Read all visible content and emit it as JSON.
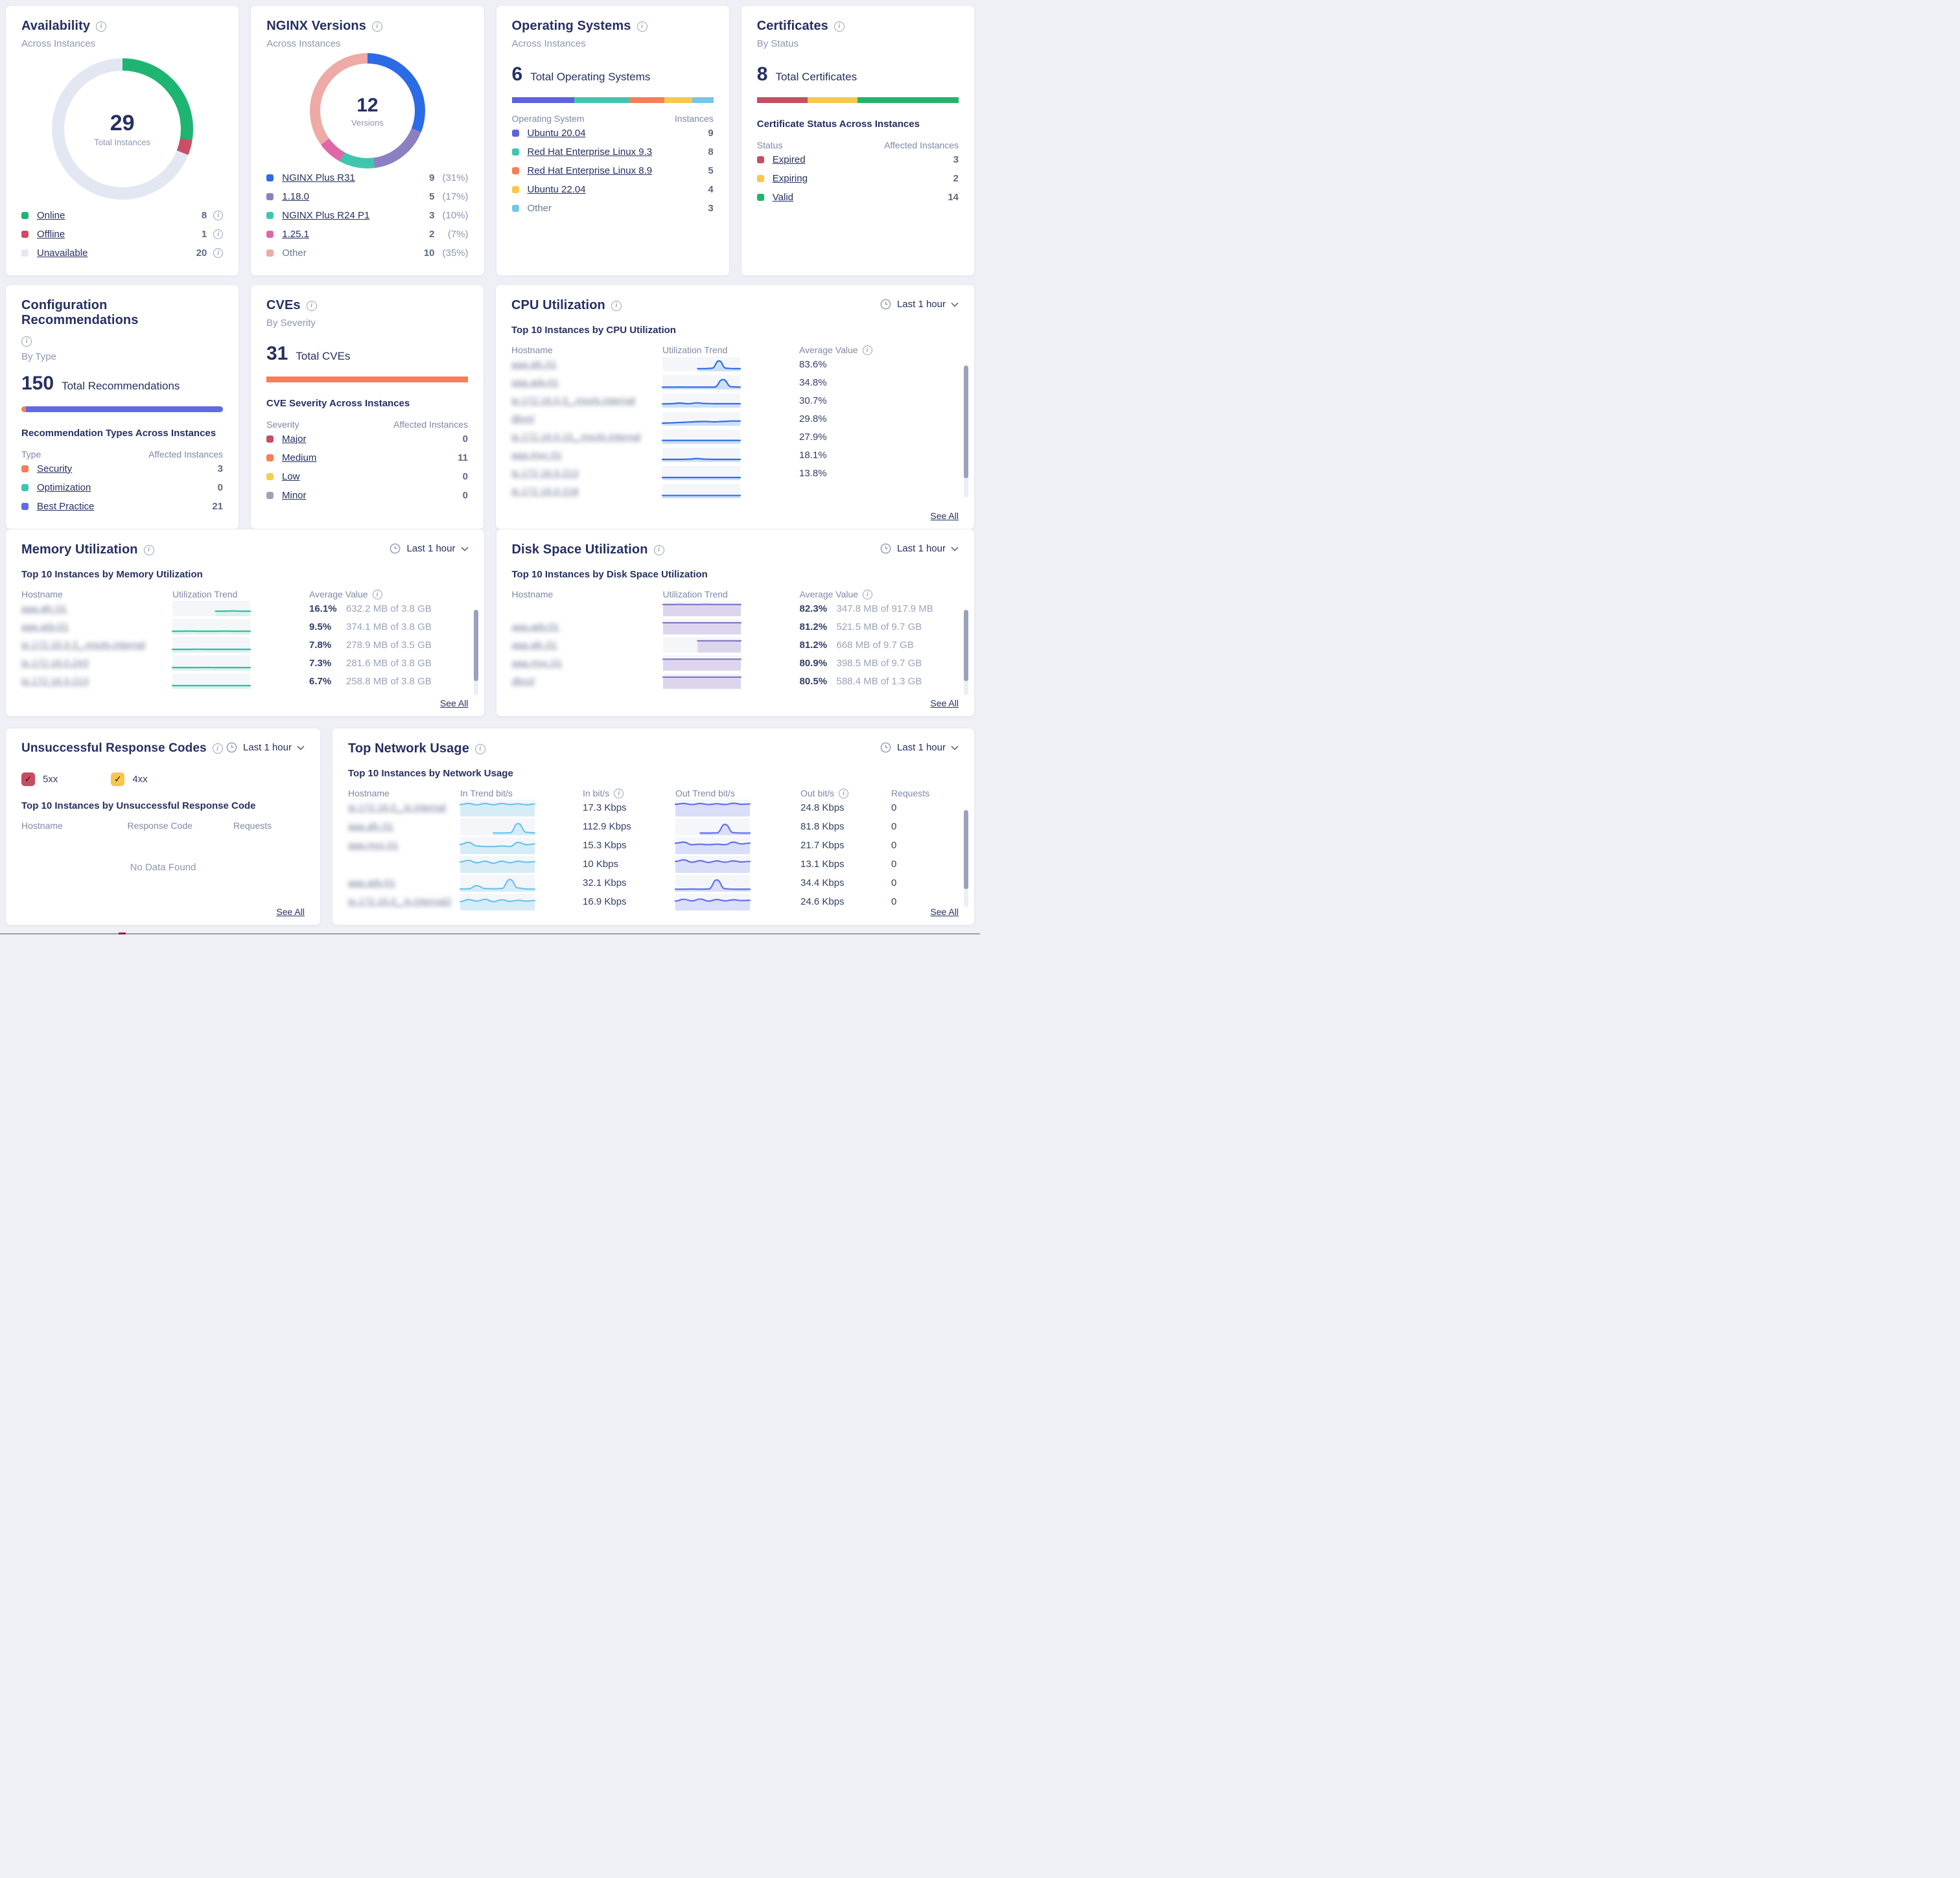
{
  "page": {
    "time_range_label": "Last 1 hour",
    "see_all_label": "See All"
  },
  "availability": {
    "title": "Availability",
    "subtitle": "Across Instances",
    "donut": {
      "center_value": "29",
      "center_label": "Total Instances",
      "segments": [
        {
          "label": "Online",
          "color": "#1db571",
          "pct": 27.6
        },
        {
          "label": "Offline",
          "color": "#cb4e64",
          "pct": 3.4
        },
        {
          "label": "Unavailable",
          "color": "#e3e7f2",
          "pct": 69.0
        }
      ]
    },
    "legend": [
      {
        "label": "Online",
        "color": "#1db571",
        "value": "8"
      },
      {
        "label": "Offline",
        "color": "#cb4e64",
        "value": "1"
      },
      {
        "label": "Unavailable",
        "color": "#e3e7f2",
        "value": "20"
      }
    ]
  },
  "nginx_versions": {
    "title": "NGINX Versions",
    "subtitle": "Across Instances",
    "donut": {
      "center_value": "12",
      "center_label": "Versions",
      "segments": [
        {
          "label": "NGINX Plus R31",
          "color": "#2c6be6",
          "pct": 31
        },
        {
          "label": "1.18.0",
          "color": "#8d80c2",
          "pct": 17
        },
        {
          "label": "NGINX Plus R24 P1",
          "color": "#3fc6ae",
          "pct": 10
        },
        {
          "label": "1.25.1",
          "color": "#de67a7",
          "pct": 7
        },
        {
          "label": "Other",
          "color": "#eeaaa4",
          "pct": 35
        }
      ]
    },
    "legend": [
      {
        "label": "NGINX Plus R31",
        "color": "#2c6be6",
        "count": "9",
        "pct": "(31%)"
      },
      {
        "label": "1.18.0",
        "color": "#8d80c2",
        "count": "5",
        "pct": "(17%)"
      },
      {
        "label": "NGINX Plus R24 P1",
        "color": "#3fc6ae",
        "count": "3",
        "pct": "(10%)"
      },
      {
        "label": "1.25.1",
        "color": "#de67a7",
        "count": "2",
        "pct": "(7%)"
      },
      {
        "label": "Other",
        "color": "#eeaaa4",
        "count": "10",
        "pct": "(35%)"
      }
    ]
  },
  "operating_systems": {
    "title": "Operating Systems",
    "subtitle": "Across Instances",
    "total_value": "6",
    "total_label": "Total Operating Systems",
    "bar": [
      {
        "color": "#5c62e0",
        "pct": 31
      },
      {
        "color": "#3fc6ae",
        "pct": 27.6
      },
      {
        "color": "#f87e55",
        "pct": 17.2
      },
      {
        "color": "#f8c84b",
        "pct": 13.8
      },
      {
        "color": "#74c7e6",
        "pct": 10.4
      }
    ],
    "col_left": "Operating System",
    "col_right": "Instances",
    "rows": [
      {
        "label": "Ubuntu 20.04",
        "color": "#5c62e0",
        "value": "9",
        "link": true
      },
      {
        "label": "Red Hat Enterprise Linux 9.3",
        "color": "#3fc6ae",
        "value": "8",
        "link": true
      },
      {
        "label": "Red Hat Enterprise Linux 8.9",
        "color": "#f87e55",
        "value": "5",
        "link": true
      },
      {
        "label": "Ubuntu 22.04",
        "color": "#f8c84b",
        "value": "4",
        "link": true
      },
      {
        "label": "Other",
        "color": "#74c7e6",
        "value": "3",
        "link": false
      }
    ]
  },
  "certificates": {
    "title": "Certificates",
    "subtitle": "By Status",
    "total_value": "8",
    "total_label": "Total Certificates",
    "bar": [
      {
        "color": "#c44f63",
        "pct": 25
      },
      {
        "color": "#f8c84b",
        "pct": 25
      },
      {
        "color": "#22b569",
        "pct": 50
      }
    ],
    "section_title": "Certificate Status Across Instances",
    "col_left": "Status",
    "col_right": "Affected Instances",
    "rows": [
      {
        "label": "Expired",
        "color": "#c44f63",
        "value": "3"
      },
      {
        "label": "Expiring",
        "color": "#f8c84b",
        "value": "2"
      },
      {
        "label": "Valid",
        "color": "#22b569",
        "value": "14"
      }
    ]
  },
  "config_recommendations": {
    "title": "Configuration Recommendations",
    "subtitle": "By Type",
    "total_value": "150",
    "total_label": "Total Recommendations",
    "bar": [
      {
        "color": "#f87e55",
        "pct": 2.2
      },
      {
        "color": "#5f6be4",
        "pct": 97.8
      }
    ],
    "section_title": "Recommendation Types Across Instances",
    "col_left": "Type",
    "col_right": "Affected Instances",
    "rows": [
      {
        "label": "Security",
        "color": "#f87e55",
        "value": "3"
      },
      {
        "label": "Optimization",
        "color": "#3fc6ae",
        "value": "0"
      },
      {
        "label": "Best Practice",
        "color": "#5f6be4",
        "value": "21"
      }
    ]
  },
  "cves": {
    "title": "CVEs",
    "subtitle": "By Severity",
    "total_value": "31",
    "total_label": "Total CVEs",
    "bar": [
      {
        "color": "#f87e55",
        "pct": 100
      }
    ],
    "section_title": "CVE Severity Across Instances",
    "col_left": "Severity",
    "col_right": "Affected Instances",
    "rows": [
      {
        "label": "Major",
        "color": "#c44f63",
        "value": "0"
      },
      {
        "label": "Medium",
        "color": "#f87e55",
        "value": "11"
      },
      {
        "label": "Low",
        "color": "#f8cd52",
        "value": "0"
      },
      {
        "label": "Minor",
        "color": "#9aa3b8",
        "value": "0"
      }
    ]
  },
  "cpu": {
    "title": "CPU Utilization",
    "table_title": "Top 10 Instances by CPU Utilization",
    "headers": {
      "host": "Hostname",
      "trend": "Utilization Trend",
      "avg": "Average Value"
    },
    "colors": {
      "line": "#2f6fe4",
      "fill": "#cfdffa"
    },
    "rows": [
      {
        "hostname": "aaa.afc.01",
        "avg": "83.6%",
        "trend": [
          null,
          null,
          null,
          null,
          null,
          0.1,
          0.1,
          0.14,
          0.85,
          0.14,
          0.1,
          0.1
        ]
      },
      {
        "hostname": "aaa.adv.01",
        "avg": "34.8%",
        "trend": [
          0.07,
          0.07,
          0.08,
          0.07,
          0.07,
          0.07,
          0.07,
          0.8,
          0.1,
          0.07
        ]
      },
      {
        "hostname": "ip.172.16.0.3_.msvls.internal",
        "avg": "30.7%",
        "trend": [
          0.2,
          0.22,
          0.28,
          0.22,
          0.3,
          0.24,
          0.22,
          0.22,
          0.22,
          0.22
        ]
      },
      {
        "hostname": "dbvsl",
        "avg": "29.8%",
        "trend": [
          0.1,
          0.12,
          0.16,
          0.2,
          0.24,
          0.26,
          0.22,
          0.26,
          0.3,
          0.3
        ]
      },
      {
        "hostname": "ip.172.16.0.15_.msvls.internal",
        "avg": "27.9%",
        "trend": [
          0.18,
          0.18,
          0.18,
          0.18,
          0.18,
          0.18,
          0.18,
          0.18,
          0.18,
          0.18
        ]
      },
      {
        "hostname": "aaa.mvc.01",
        "avg": "18.1%",
        "trend": [
          0.1,
          0.1,
          0.1,
          0.12,
          0.18,
          0.12,
          0.1,
          0.1,
          0.1,
          0.1
        ]
      },
      {
        "hostname": "ip.172.16.0.213",
        "avg": "13.8%",
        "trend": [
          0.1,
          0.1,
          0.1,
          0.1,
          0.1,
          0.1,
          0.1,
          0.1,
          0.1,
          0.1
        ]
      },
      {
        "hostname": "ip.172.16.0.218",
        "avg": "",
        "trend": [
          0.12,
          0.12,
          0.12,
          0.12,
          0.12,
          0.12,
          0.12,
          0.12,
          0.12,
          0.12
        ]
      }
    ]
  },
  "memory": {
    "title": "Memory Utilization",
    "table_title": "Top 10 Instances by Memory Utilization",
    "headers": {
      "host": "Hostname",
      "trend": "Utilization Trend",
      "avg": "Average Value"
    },
    "colors": {
      "line": "#2fc0a5",
      "fill": "#d9f3ec"
    },
    "rows": [
      {
        "hostname": "aaa.afc.01",
        "avg": "16.1%",
        "detail": "632.2 MB of 3.8 GB",
        "trend": [
          null,
          null,
          null,
          null,
          null,
          0.3,
          0.3,
          0.32,
          0.3,
          0.3
        ]
      },
      {
        "hostname": "aaa.adv.01",
        "avg": "9.5%",
        "detail": "374.1 MB of 3.8 GB",
        "trend": [
          0.14,
          0.14,
          0.15,
          0.14,
          0.14,
          0.14,
          0.15,
          0.14,
          0.14,
          0.14
        ]
      },
      {
        "hostname": "ip.172.16.0.3_.msvls.internal",
        "avg": "7.8%",
        "detail": "278.9 MB of 3.5 GB",
        "trend": [
          0.14,
          0.14,
          0.14,
          0.15,
          0.14,
          0.14,
          0.14,
          0.14,
          0.14,
          0.14
        ]
      },
      {
        "hostname": "ip.172.16.0.243",
        "avg": "7.3%",
        "detail": "281.6 MB of 3.8 GB",
        "trend": [
          0.13,
          0.13,
          0.13,
          0.13,
          0.14,
          0.13,
          0.13,
          0.13,
          0.13,
          0.13
        ]
      },
      {
        "hostname": "ip.172.16.0.213",
        "avg": "6.7%",
        "detail": "258.8 MB of 3.8 GB",
        "trend": [
          0.14,
          0.14,
          0.14,
          0.14,
          0.14,
          0.14,
          0.14,
          0.14,
          0.14,
          0.14
        ]
      }
    ]
  },
  "disk": {
    "title": "Disk Space Utilization",
    "table_title": "Top 10 Instances by Disk Space Utilization",
    "headers": {
      "host": "Hostname",
      "trend": "Utilization Trend",
      "avg": "Average Value"
    },
    "colors": {
      "line": "#8577c2",
      "fill": "#ddd5ee"
    },
    "rows": [
      {
        "hostname": "",
        "avg": "82.3%",
        "detail": "347.8 MB of 917.9 MB",
        "trend": [
          0.87,
          0.87,
          0.88,
          0.87,
          0.87,
          0.88,
          0.87,
          0.87,
          0.87,
          0.87
        ]
      },
      {
        "hostname": "aaa.adv.01",
        "avg": "81.2%",
        "detail": "521.5 MB of 9.7 GB",
        "trend": [
          0.86,
          0.86,
          0.86,
          0.86,
          0.86,
          0.86,
          0.86,
          0.86,
          0.86,
          0.86
        ]
      },
      {
        "hostname": "aaa.afc.01",
        "avg": "81.2%",
        "detail": "668 MB of 9.7 GB",
        "trend": [
          null,
          null,
          null,
          null,
          0.87,
          0.87,
          0.87,
          0.87,
          0.87,
          0.87
        ]
      },
      {
        "hostname": "aaa.mvc.01",
        "avg": "80.9%",
        "detail": "398.5 MB of 9.7 GB",
        "trend": [
          0.85,
          0.85,
          0.85,
          0.85,
          0.85,
          0.85,
          0.85,
          0.85,
          0.85,
          0.85
        ]
      },
      {
        "hostname": "dbvsl",
        "avg": "80.5%",
        "detail": "588.4 MB of 1.3 GB",
        "trend": [
          0.87,
          0.87,
          0.87,
          0.87,
          0.87,
          0.87,
          0.87,
          0.87,
          0.87,
          0.87
        ]
      }
    ]
  },
  "response_codes": {
    "title": "Unsuccessful Response Codes",
    "filters": [
      {
        "label": "5xx",
        "color": "#cb4b5f"
      },
      {
        "label": "4xx",
        "color": "#f7c64b"
      }
    ],
    "table_title": "Top 10 Instances by Unsuccessful Response Code",
    "headers": {
      "host": "Hostname",
      "code": "Response Code",
      "req": "Requests"
    },
    "empty": "No Data Found"
  },
  "network": {
    "title": "Top Network Usage",
    "table_title": "Top 10 Instances by Network Usage",
    "headers": {
      "host": "Hostname",
      "in_trend": "In Trend bit/s",
      "in": "In bit/s",
      "out_trend": "Out Trend bit/s",
      "out": "Out bit/s",
      "req": "Requests"
    },
    "in_colors": {
      "line": "#6ec3e9",
      "fill": "#d6edf8"
    },
    "out_colors": {
      "line": "#6471e9",
      "fill": "#dadef9"
    },
    "rows": [
      {
        "hostname": "ip.172.16.0_.ls.internal",
        "in": "17.3 Kbps",
        "out": "24.8 Kbps",
        "req": "0",
        "in_trend": [
          0.8,
          0.88,
          0.78,
          0.88,
          0.78,
          0.88,
          0.8,
          0.86,
          0.78,
          0.84
        ],
        "out_trend": [
          0.82,
          0.88,
          0.8,
          0.88,
          0.8,
          0.86,
          0.8,
          0.9,
          0.82,
          0.84
        ]
      },
      {
        "hostname": "aaa.afc.01",
        "in": "112.9 Kbps",
        "out": "81.8 Kbps",
        "req": "0",
        "in_trend": [
          null,
          null,
          null,
          null,
          0.06,
          0.06,
          0.07,
          0.78,
          0.1,
          0.06
        ],
        "out_trend": [
          null,
          null,
          null,
          0.05,
          0.05,
          0.06,
          0.72,
          0.08,
          0.05,
          0.05
        ]
      },
      {
        "hostname": "aaa.mvc.01",
        "in": "15.3 Kbps",
        "out": "21.7 Kbps",
        "req": "0",
        "in_trend": [
          0.62,
          0.78,
          0.5,
          0.46,
          0.46,
          0.5,
          0.46,
          0.78,
          0.6,
          0.66
        ],
        "out_trend": [
          0.72,
          0.8,
          0.6,
          0.64,
          0.6,
          0.64,
          0.6,
          0.8,
          0.66,
          0.72
        ]
      },
      {
        "hostname": "",
        "in": "10 Kbps",
        "out": "13.1 Kbps",
        "req": "0",
        "in_trend": [
          0.72,
          0.84,
          0.66,
          0.78,
          0.62,
          0.78,
          0.66,
          0.78,
          0.7,
          0.74
        ],
        "out_trend": [
          0.76,
          0.88,
          0.7,
          0.82,
          0.68,
          0.8,
          0.7,
          0.8,
          0.72,
          0.76
        ]
      },
      {
        "hostname": "aaa.adv.01",
        "in": "32.1 Kbps",
        "out": "34.4 Kbps",
        "req": "0",
        "in_trend": [
          0.08,
          0.1,
          0.34,
          0.12,
          0.1,
          0.12,
          0.82,
          0.16,
          0.08,
          0.08
        ],
        "out_trend": [
          0.07,
          0.07,
          0.08,
          0.07,
          0.08,
          0.78,
          0.1,
          0.07,
          0.07,
          0.07
        ]
      },
      {
        "hostname": "ip.172.16.0_.ls.internal2",
        "in": "16.9 Kbps",
        "out": "24.6 Kbps",
        "req": "0",
        "in_trend": [
          0.56,
          0.72,
          0.6,
          0.74,
          0.56,
          0.7,
          0.58,
          0.66,
          0.6,
          0.64
        ],
        "out_trend": [
          0.6,
          0.74,
          0.62,
          0.76,
          0.6,
          0.72,
          0.62,
          0.7,
          0.64,
          0.66
        ]
      }
    ]
  }
}
